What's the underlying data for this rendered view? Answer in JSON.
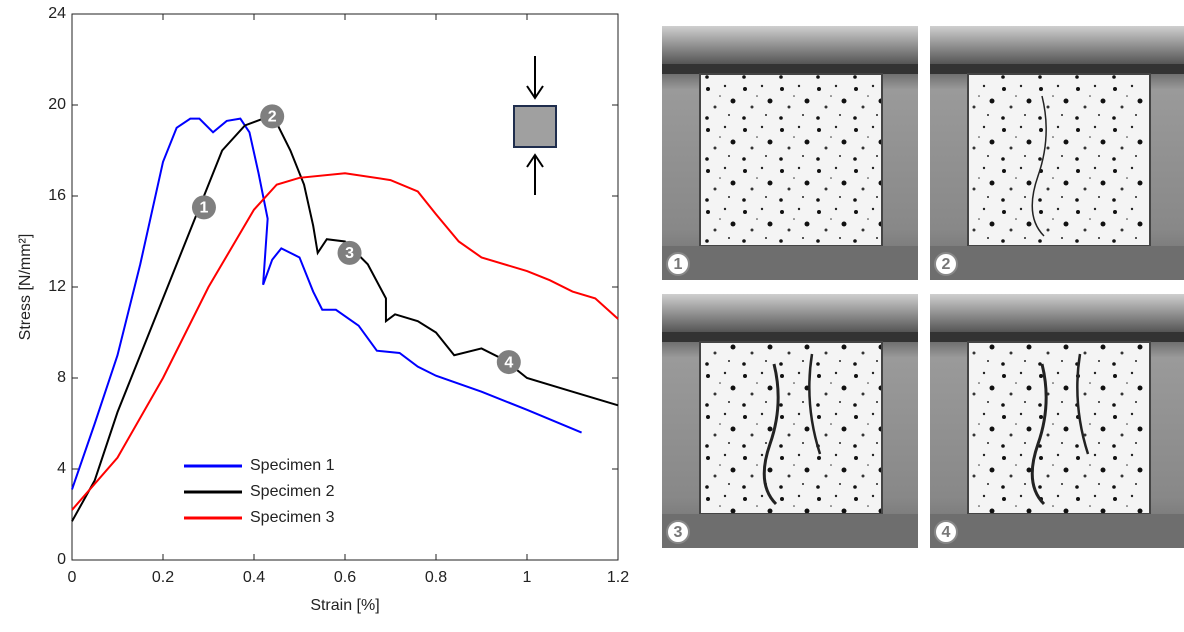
{
  "chart_data": {
    "type": "line",
    "xlabel": "Strain [%]",
    "ylabel": "Stress [N/mm²]",
    "xlim": [
      0,
      1.2
    ],
    "xticks": [
      0,
      0.2,
      0.4,
      0.6,
      0.8,
      1,
      1.2
    ],
    "ylim": [
      0,
      24
    ],
    "yticks": [
      0,
      4,
      8,
      12,
      16,
      20,
      24
    ],
    "grid": false,
    "legend": "lower-left",
    "series": [
      {
        "name": "Specimen 1",
        "color": "#0000ff",
        "x": [
          0,
          0.05,
          0.1,
          0.15,
          0.2,
          0.23,
          0.26,
          0.28,
          0.31,
          0.34,
          0.37,
          0.39,
          0.41,
          0.43,
          0.42,
          0.44,
          0.46,
          0.5,
          0.53,
          0.55,
          0.58,
          0.63,
          0.67,
          0.72,
          0.76,
          0.8,
          0.9,
          1.0,
          1.12
        ],
        "values": [
          3.1,
          6,
          9,
          13,
          17.5,
          19,
          19.4,
          19.4,
          18.8,
          19.3,
          19.4,
          18.8,
          17,
          15,
          12.1,
          13.2,
          13.7,
          13.3,
          11.8,
          11,
          11,
          10.3,
          9.2,
          9.1,
          8.5,
          8.1,
          7.4,
          6.6,
          5.6
        ]
      },
      {
        "name": "Specimen 2",
        "color": "#000000",
        "x": [
          0,
          0.05,
          0.1,
          0.2,
          0.28,
          0.33,
          0.38,
          0.42,
          0.45,
          0.48,
          0.51,
          0.53,
          0.54,
          0.56,
          0.6,
          0.65,
          0.69,
          0.69,
          0.71,
          0.76,
          0.8,
          0.84,
          0.9,
          0.95,
          1.0,
          1.1,
          1.2
        ],
        "values": [
          1.7,
          3.5,
          6.5,
          11.5,
          15.5,
          18,
          19.1,
          19.4,
          19.2,
          18,
          16.5,
          14.7,
          13.5,
          14.1,
          14,
          13,
          11.5,
          10.5,
          10.8,
          10.5,
          10,
          9,
          9.3,
          8.8,
          8,
          7.4,
          6.8
        ]
      },
      {
        "name": "Specimen 3",
        "color": "#ff0000",
        "x": [
          0,
          0.1,
          0.2,
          0.3,
          0.4,
          0.45,
          0.5,
          0.6,
          0.7,
          0.76,
          0.8,
          0.85,
          0.9,
          1.0,
          1.05,
          1.1,
          1.15,
          1.2
        ],
        "values": [
          2.2,
          4.5,
          8,
          12,
          15.4,
          16.5,
          16.8,
          17,
          16.7,
          16.2,
          15.2,
          14,
          13.3,
          12.7,
          12.3,
          11.8,
          11.5,
          10.6
        ]
      }
    ],
    "annotations": [
      {
        "text": "1",
        "x": 0.29,
        "y": 15.5
      },
      {
        "text": "2",
        "x": 0.44,
        "y": 19.5
      },
      {
        "text": "3",
        "x": 0.61,
        "y": 13.5
      },
      {
        "text": "4",
        "x": 0.96,
        "y": 8.7
      }
    ]
  },
  "photos": [
    {
      "label": "1"
    },
    {
      "label": "2"
    },
    {
      "label": "3"
    },
    {
      "label": "4"
    }
  ]
}
